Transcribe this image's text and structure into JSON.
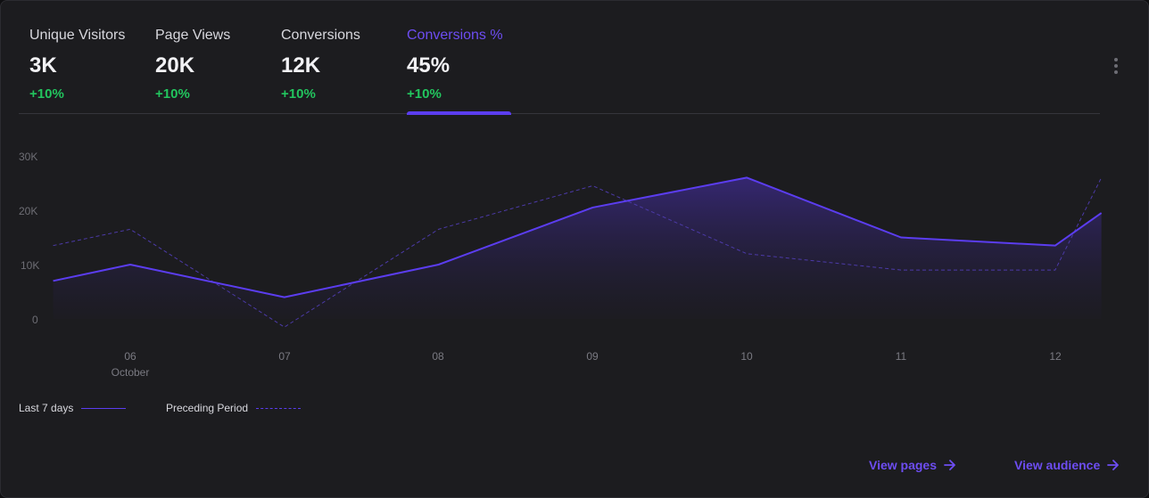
{
  "tabs": [
    {
      "label": "Unique Visitors",
      "value": "3K",
      "change": "+10%"
    },
    {
      "label": "Page Views",
      "value": "20K",
      "change": "+10%"
    },
    {
      "label": "Conversions",
      "value": "12K",
      "change": "+10%"
    },
    {
      "label": "Conversions %",
      "value": "45%",
      "change": "+10%",
      "active": true
    }
  ],
  "colors": {
    "accent": "#5b3df0",
    "positive": "#22c55e",
    "background": "#1c1c1f"
  },
  "chart_data": {
    "type": "area",
    "y_ticks": [
      "30K",
      "20K",
      "10K",
      "0"
    ],
    "x_ticks": [
      "06",
      "07",
      "08",
      "09",
      "10",
      "11",
      "12"
    ],
    "x_subtitle": "October",
    "ylim": [
      0,
      30000
    ],
    "series": [
      {
        "name": "Last 7 days",
        "style": "solid-area",
        "points": [
          {
            "x": -0.5,
            "y": 7000
          },
          {
            "x": 0,
            "y": 10000
          },
          {
            "x": 1,
            "y": 4000
          },
          {
            "x": 2,
            "y": 10000
          },
          {
            "x": 3,
            "y": 20500
          },
          {
            "x": 4,
            "y": 26000
          },
          {
            "x": 5,
            "y": 15000
          },
          {
            "x": 6,
            "y": 13500
          },
          {
            "x": 6.3,
            "y": 19500
          }
        ]
      },
      {
        "name": "Preceding Period",
        "style": "dashed",
        "points": [
          {
            "x": -0.5,
            "y": 13500
          },
          {
            "x": 0,
            "y": 16500
          },
          {
            "x": 1,
            "y": -1500
          },
          {
            "x": 2,
            "y": 16500
          },
          {
            "x": 3,
            "y": 24500
          },
          {
            "x": 4,
            "y": 12000
          },
          {
            "x": 5,
            "y": 9000
          },
          {
            "x": 6,
            "y": 9000
          },
          {
            "x": 6.3,
            "y": 26000
          }
        ]
      }
    ]
  },
  "legend": {
    "current_label": "Last 7 days",
    "previous_label": "Preceding Period"
  },
  "footer": {
    "view_pages_label": "View pages",
    "view_audience_label": "View audience"
  }
}
